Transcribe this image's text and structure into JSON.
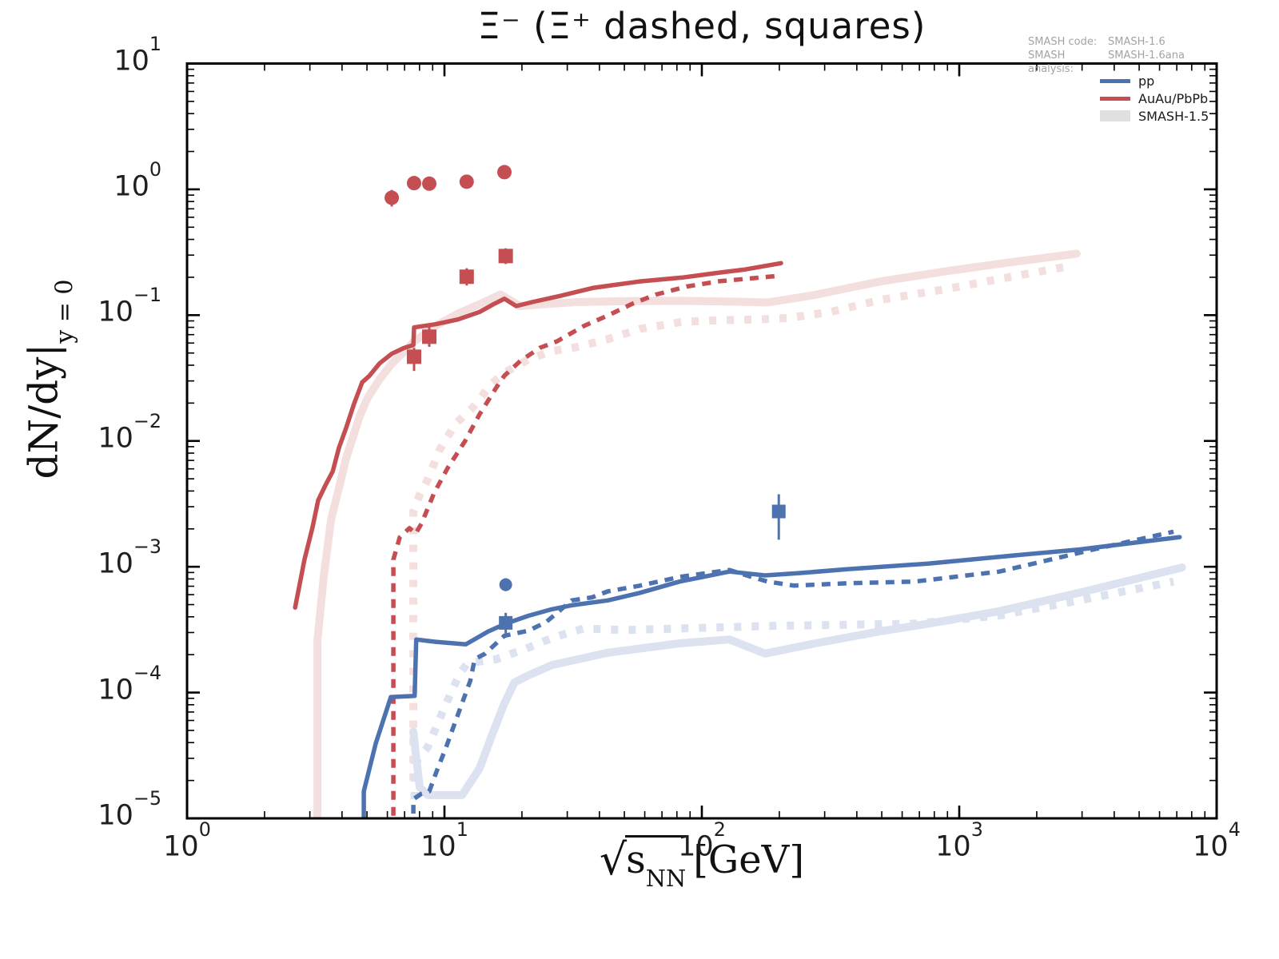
{
  "title": "Ξ⁻ (Ξ⁺ dashed, squares)",
  "annotation": {
    "rows": [
      {
        "label": "SMASH code:",
        "value": "SMASH-1.6"
      },
      {
        "label": "SMASH analysis:",
        "value": "SMASH-1.6ana"
      }
    ]
  },
  "legend": {
    "items": [
      {
        "label": "pp",
        "color": "#4c72b0",
        "type": "line"
      },
      {
        "label": "AuAu/PbPb",
        "color": "#c44e52",
        "type": "line"
      },
      {
        "label": "SMASH-1.5",
        "color": "#e0e0e0",
        "type": "band"
      }
    ]
  },
  "axes": {
    "xlabel_sqrt": "√",
    "xlabel_sym": "s",
    "xlabel_sub": "NN",
    "xlabel_unit": "[GeV]",
    "ylabel_main": "dN/dy|",
    "ylabel_sub": "y = 0",
    "x_tick_exponents": [
      0,
      1,
      2,
      3,
      4
    ],
    "y_tick_exponents": [
      1,
      0,
      -1,
      -2,
      -3,
      -4,
      -5
    ],
    "xlim": [
      1,
      10000
    ],
    "ylim": [
      1e-05,
      10
    ],
    "scale": "log-log",
    "grid": false
  },
  "colors": {
    "red": "#c44e52",
    "blue": "#4c72b0",
    "light_red": "#f4dfdf",
    "light_blue": "#dce2ef",
    "frame": "#000000",
    "annotation_gray": "#a3a3a3"
  },
  "chart_data": {
    "type": "line",
    "title": "Ξ⁻ (Ξ⁺ dashed, squares)",
    "xlabel": "sqrt(s_NN) [GeV]",
    "ylabel": "dN/dy at y=0",
    "xlim": [
      1,
      10000
    ],
    "ylim": [
      1e-05,
      10
    ],
    "legend_position": "upper right",
    "series": [
      {
        "name": "AuAu/PbPb SMASH-1.5 Xi-",
        "style": "solid",
        "color": "#f4dfdf",
        "width": 10,
        "points": [
          [
            3.21,
            1e-05
          ],
          [
            3.21,
            0.00026
          ],
          [
            3.4,
            0.00085
          ],
          [
            3.63,
            0.0024
          ],
          [
            3.9,
            0.0043
          ],
          [
            4.15,
            0.0073
          ],
          [
            4.7,
            0.016
          ],
          [
            5.03,
            0.022
          ],
          [
            5.6,
            0.031
          ],
          [
            6.24,
            0.041
          ],
          [
            6.95,
            0.051
          ],
          [
            7.57,
            0.061
          ],
          [
            9.24,
            0.082
          ],
          [
            11.3,
            0.103
          ],
          [
            13.7,
            0.122
          ],
          [
            16.5,
            0.146
          ],
          [
            19.7,
            0.118
          ],
          [
            24.3,
            0.122
          ],
          [
            32.4,
            0.127
          ],
          [
            49.8,
            0.129
          ],
          [
            83.7,
            0.13
          ],
          [
            135,
            0.128
          ],
          [
            180,
            0.126
          ],
          [
            276,
            0.145
          ],
          [
            491,
            0.185
          ],
          [
            872,
            0.222
          ],
          [
            1536,
            0.261
          ],
          [
            2860,
            0.308
          ]
        ]
      },
      {
        "name": "AuAu/PbPb SMASH-1.5 Xi+ (dashed)",
        "style": "dashed",
        "color": "#f4dfdf",
        "width": 10,
        "points": [
          [
            7.57,
            2e-05
          ],
          [
            7.57,
            0.00275
          ],
          [
            8.0,
            0.0037
          ],
          [
            8.6,
            0.0049
          ],
          [
            9.57,
            0.0085
          ],
          [
            11.05,
            0.0137
          ],
          [
            12.9,
            0.0185
          ],
          [
            15.3,
            0.0287
          ],
          [
            17.1,
            0.0348
          ],
          [
            21.2,
            0.0445
          ],
          [
            26.1,
            0.0517
          ],
          [
            32.4,
            0.0556
          ],
          [
            43,
            0.0643
          ],
          [
            57.5,
            0.0777
          ],
          [
            83.7,
            0.0885
          ],
          [
            117,
            0.0911
          ],
          [
            167,
            0.0924
          ],
          [
            218,
            0.0951
          ],
          [
            317,
            0.106
          ],
          [
            491,
            0.132
          ],
          [
            872,
            0.16
          ],
          [
            1536,
            0.199
          ],
          [
            2723,
            0.247
          ]
        ]
      },
      {
        "name": "pp SMASH-1.5 Xi-",
        "style": "solid",
        "color": "#dce2ef",
        "width": 10,
        "points": [
          [
            7.57,
            4.9e-05
          ],
          [
            7.72,
            3.4e-05
          ],
          [
            8.02,
            1.76e-05
          ],
          [
            8.61,
            1.53e-05
          ],
          [
            11.7,
            1.53e-05
          ],
          [
            13.7,
            2.5e-05
          ],
          [
            15.3,
            4.6e-05
          ],
          [
            17.1,
            8.2e-05
          ],
          [
            18.7,
            0.00012
          ],
          [
            21.2,
            0.000137
          ],
          [
            26.1,
            0.000165
          ],
          [
            43.1,
            0.000207
          ],
          [
            82,
            0.000246
          ],
          [
            128,
            0.000264
          ],
          [
            176,
            0.000204
          ],
          [
            276,
            0.000246
          ],
          [
            491,
            0.000306
          ],
          [
            757,
            0.000353
          ],
          [
            1434,
            0.000443
          ],
          [
            2923,
            0.00062
          ],
          [
            7330,
            0.000987
          ]
        ]
      },
      {
        "name": "pp SMASH-1.5 Xi+ (dashed)",
        "style": "dashed",
        "color": "#dce2ef",
        "width": 10,
        "points": [
          [
            7.66,
            1.42e-05
          ],
          [
            7.66,
            2.73e-05
          ],
          [
            8.61,
            3.68e-05
          ],
          [
            9.24,
            5.16e-05
          ],
          [
            9.92,
            7.33e-05
          ],
          [
            10.7,
            0.000104
          ],
          [
            11.5,
            0.000143
          ],
          [
            12.3,
            0.000171
          ],
          [
            15.9,
            0.000184
          ],
          [
            20.6,
            0.000222
          ],
          [
            26.6,
            0.000275
          ],
          [
            34.8,
            0.000323
          ],
          [
            49.8,
            0.000314
          ],
          [
            82,
            0.000323
          ],
          [
            180,
            0.000338
          ],
          [
            672,
            0.000353
          ],
          [
            1434,
            0.00041
          ],
          [
            2923,
            0.00054
          ],
          [
            6800,
            0.000762
          ]
        ]
      },
      {
        "name": "AuAu/PbPb SMASH-1.6 Xi-",
        "style": "solid",
        "color": "#c44e52",
        "width": 5.5,
        "points": [
          [
            2.63,
            0.000474
          ],
          [
            2.86,
            0.00114
          ],
          [
            3.07,
            0.00205
          ],
          [
            3.23,
            0.00337
          ],
          [
            3.45,
            0.00446
          ],
          [
            3.68,
            0.00572
          ],
          [
            3.89,
            0.00883
          ],
          [
            4.15,
            0.0127
          ],
          [
            4.46,
            0.0199
          ],
          [
            4.79,
            0.0293
          ],
          [
            5.11,
            0.0329
          ],
          [
            5.6,
            0.0414
          ],
          [
            6.24,
            0.0493
          ],
          [
            6.95,
            0.0548
          ],
          [
            7.57,
            0.0578
          ],
          [
            7.62,
            0.0799
          ],
          [
            9.24,
            0.0847
          ],
          [
            11.3,
            0.0924
          ],
          [
            13.7,
            0.106
          ],
          [
            15.5,
            0.122
          ],
          [
            17.1,
            0.135
          ],
          [
            19.0,
            0.118
          ],
          [
            21.9,
            0.127
          ],
          [
            28,
            0.142
          ],
          [
            38,
            0.165
          ],
          [
            57,
            0.185
          ],
          [
            84,
            0.199
          ],
          [
            117,
            0.218
          ],
          [
            148,
            0.231
          ],
          [
            203,
            0.259
          ]
        ]
      },
      {
        "name": "AuAu/PbPb SMASH-1.6 Xi+ (dashed)",
        "style": "dashed",
        "color": "#c44e52",
        "width": 5.5,
        "points": [
          [
            6.33,
            1.05e-05
          ],
          [
            6.33,
            0.00114
          ],
          [
            6.7,
            0.00171
          ],
          [
            7.31,
            0.00203
          ],
          [
            7.72,
            0.00183
          ],
          [
            8.14,
            0.0022
          ],
          [
            9.11,
            0.00385
          ],
          [
            10.3,
            0.0061
          ],
          [
            12.0,
            0.0099
          ],
          [
            13.7,
            0.0163
          ],
          [
            15.9,
            0.0265
          ],
          [
            17.1,
            0.033
          ],
          [
            19.7,
            0.0432
          ],
          [
            23.5,
            0.055
          ],
          [
            27.4,
            0.062
          ],
          [
            34.8,
            0.082
          ],
          [
            43,
            0.099
          ],
          [
            53.6,
            0.123
          ],
          [
            66.5,
            0.146
          ],
          [
            87.5,
            0.169
          ],
          [
            117,
            0.186
          ],
          [
            156,
            0.196
          ],
          [
            196,
            0.205
          ]
        ]
      },
      {
        "name": "pp SMASH-1.6 Xi-",
        "style": "solid",
        "color": "#4c72b0",
        "width": 5.5,
        "points": [
          [
            4.86,
            1e-05
          ],
          [
            4.86,
            1.64e-05
          ],
          [
            5.41,
            3.95e-05
          ],
          [
            6.19,
            9.2e-05
          ],
          [
            7.66,
            9.4e-05
          ],
          [
            7.77,
            0.000264
          ],
          [
            9.24,
            0.000253
          ],
          [
            12.1,
            0.000242
          ],
          [
            14.8,
            0.000306
          ],
          [
            17.3,
            0.000353
          ],
          [
            21.2,
            0.000408
          ],
          [
            26.1,
            0.000459
          ],
          [
            31.2,
            0.000494
          ],
          [
            43.1,
            0.00054
          ],
          [
            57.5,
            0.00062
          ],
          [
            82,
            0.000762
          ],
          [
            101,
            0.00083
          ],
          [
            128,
            0.000916
          ],
          [
            156,
            0.000876
          ],
          [
            176,
            0.000853
          ],
          [
            239,
            0.00089
          ],
          [
            367,
            0.000955
          ],
          [
            757,
            0.00106
          ],
          [
            1434,
            0.0012
          ],
          [
            2923,
            0.00137
          ],
          [
            7180,
            0.00172
          ]
        ]
      },
      {
        "name": "pp SMASH-1.6 Xi+ (dashed)",
        "style": "dashed",
        "color": "#4c72b0",
        "width": 5.5,
        "points": [
          [
            7.57,
            1.09e-05
          ],
          [
            7.57,
            1.42e-05
          ],
          [
            8.14,
            1.57e-05
          ],
          [
            8.73,
            1.64e-05
          ],
          [
            9.37,
            2.43e-05
          ],
          [
            10.1,
            3.58e-05
          ],
          [
            11.2,
            6.4e-05
          ],
          [
            12.6,
            0.000124
          ],
          [
            13.1,
            0.000184
          ],
          [
            14.4,
            0.000204
          ],
          [
            17.1,
            0.000283
          ],
          [
            21.2,
            0.00031
          ],
          [
            24.8,
            0.000362
          ],
          [
            31.2,
            0.00054
          ],
          [
            37.4,
            0.000571
          ],
          [
            43.1,
            0.000637
          ],
          [
            57.5,
            0.000708
          ],
          [
            82,
            0.00083
          ],
          [
            128,
            0.000943
          ],
          [
            156,
            0.00083
          ],
          [
            180,
            0.000762
          ],
          [
            228,
            0.000708
          ],
          [
            367,
            0.00074
          ],
          [
            672,
            0.000762
          ],
          [
            1434,
            0.000916
          ],
          [
            3317,
            0.00137
          ],
          [
            6800,
            0.0019
          ]
        ]
      }
    ],
    "data_points": [
      {
        "name": "Xi- AuAu/PbPb experiment",
        "marker": "circle",
        "color": "#c44e52",
        "size": 9,
        "points": [
          {
            "x": 6.24,
            "y": 0.857,
            "ylo": 0.73,
            "yhi": 0.99
          },
          {
            "x": 7.62,
            "y": 1.12,
            "ylo": 1.0,
            "yhi": 1.24
          },
          {
            "x": 8.73,
            "y": 1.11,
            "ylo": 1.0,
            "yhi": 1.22
          },
          {
            "x": 12.2,
            "y": 1.15,
            "ylo": 1.04,
            "yhi": 1.27
          },
          {
            "x": 17.1,
            "y": 1.37,
            "ylo": 1.21,
            "yhi": 1.55
          }
        ]
      },
      {
        "name": "Xi+ AuAu/PbPb experiment",
        "marker": "square",
        "color": "#c44e52",
        "size": 9,
        "points": [
          {
            "x": 7.62,
            "y": 0.0467,
            "ylo": 0.036,
            "yhi": 0.055
          },
          {
            "x": 8.73,
            "y": 0.0674,
            "ylo": 0.056,
            "yhi": 0.081
          },
          {
            "x": 12.2,
            "y": 0.202,
            "ylo": 0.172,
            "yhi": 0.236
          },
          {
            "x": 17.3,
            "y": 0.295,
            "ylo": 0.255,
            "yhi": 0.34
          }
        ]
      },
      {
        "name": "Xi- pp experiment",
        "marker": "circle",
        "color": "#4c72b0",
        "size": 8,
        "points": [
          {
            "x": 17.3,
            "y": 0.00072,
            "ylo": 0.00064,
            "yhi": 0.00081
          }
        ]
      },
      {
        "name": "Xi+ pp experiment",
        "marker": "square",
        "color": "#4c72b0",
        "size": 8.5,
        "points": [
          {
            "x": 17.3,
            "y": 0.000358,
            "ylo": 0.000296,
            "yhi": 0.00043
          },
          {
            "x": 199,
            "y": 0.00275,
            "ylo": 0.00164,
            "yhi": 0.00377
          }
        ]
      }
    ]
  }
}
